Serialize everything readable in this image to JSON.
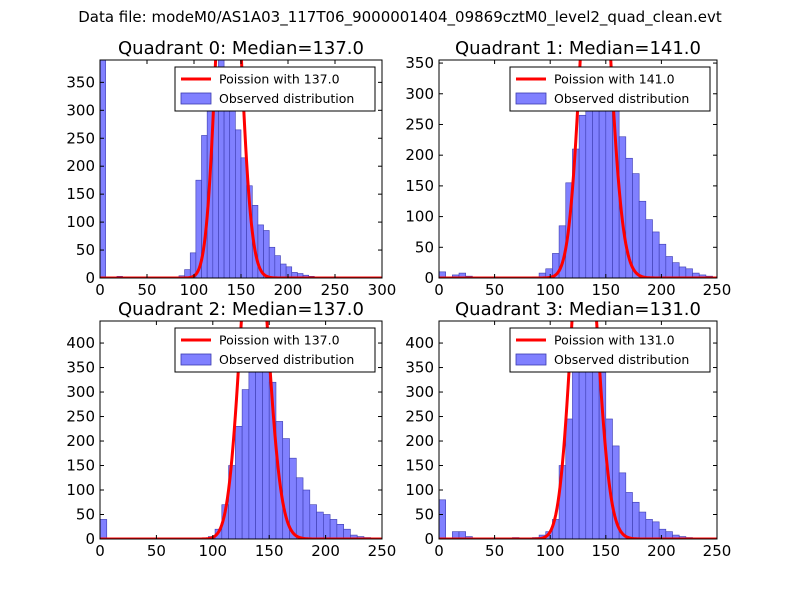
{
  "figure": {
    "title": "Data file: modeM0/AS1A03_117T06_9000001404_09869cztM0_level2_quad_clean.evt"
  },
  "colors": {
    "histogram_fill": "#8080ff",
    "histogram_edge": "#3b3bb0",
    "poisson_line": "#ff0000",
    "axes": "#000000",
    "background": "#ffffff"
  },
  "chart_data": [
    {
      "type": "bar",
      "title": "Quadrant 0: Median=137.0",
      "xlim": [
        0,
        300
      ],
      "ylim": [
        0,
        390
      ],
      "xticks": [
        0,
        50,
        100,
        150,
        200,
        250,
        300
      ],
      "yticks": [
        0,
        50,
        100,
        150,
        200,
        250,
        300,
        350
      ],
      "bin_width": 6,
      "legend": {
        "location": "top-right",
        "entries": [
          "Poission with 137.0",
          "Observed distribution"
        ]
      },
      "series": [
        {
          "name": "Observed distribution",
          "type": "histogram",
          "x": [
            0,
            6,
            12,
            18,
            24,
            30,
            36,
            42,
            48,
            54,
            60,
            66,
            72,
            78,
            84,
            90,
            96,
            102,
            108,
            114,
            120,
            126,
            132,
            138,
            144,
            150,
            156,
            162,
            168,
            174,
            180,
            186,
            192,
            198,
            204,
            210,
            216,
            222,
            228,
            234,
            240,
            246,
            252,
            258
          ],
          "values": [
            390,
            0,
            0,
            3,
            0,
            0,
            0,
            0,
            0,
            0,
            0,
            0,
            0,
            2,
            4,
            15,
            45,
            175,
            255,
            360,
            360,
            395,
            355,
            320,
            265,
            215,
            165,
            130,
            95,
            85,
            55,
            40,
            25,
            20,
            10,
            8,
            5,
            3,
            2,
            2,
            1,
            0,
            0,
            1
          ]
        },
        {
          "name": "Poission with 137.0",
          "type": "line",
          "mu": 137.0
        }
      ]
    },
    {
      "type": "bar",
      "title": "Quadrant 1: Median=141.0",
      "xlim": [
        0,
        250
      ],
      "ylim": [
        0,
        355
      ],
      "xticks": [
        0,
        50,
        100,
        150,
        200,
        250
      ],
      "yticks": [
        0,
        50,
        100,
        150,
        200,
        250,
        300,
        350
      ],
      "bin_width": 6,
      "legend": {
        "location": "top-right",
        "entries": [
          "Poission with 141.0",
          "Observed distribution"
        ]
      },
      "series": [
        {
          "name": "Observed distribution",
          "type": "histogram",
          "x": [
            0,
            6,
            12,
            18,
            24,
            30,
            36,
            42,
            48,
            54,
            60,
            66,
            72,
            78,
            84,
            90,
            96,
            102,
            108,
            114,
            120,
            126,
            132,
            138,
            144,
            150,
            156,
            162,
            168,
            174,
            180,
            186,
            192,
            198,
            204,
            210,
            216,
            222,
            228,
            234,
            240
          ],
          "values": [
            10,
            0,
            5,
            8,
            3,
            0,
            0,
            0,
            0,
            0,
            0,
            0,
            0,
            0,
            2,
            8,
            15,
            40,
            85,
            155,
            210,
            265,
            325,
            330,
            320,
            315,
            285,
            230,
            195,
            170,
            125,
            95,
            75,
            55,
            35,
            25,
            18,
            15,
            8,
            5,
            3
          ]
        },
        {
          "name": "Poission with 141.0",
          "type": "line",
          "mu": 141.0
        }
      ]
    },
    {
      "type": "bar",
      "title": "Quadrant 2: Median=137.0",
      "xlim": [
        0,
        250
      ],
      "ylim": [
        0,
        445
      ],
      "xticks": [
        0,
        50,
        100,
        150,
        200,
        250
      ],
      "yticks": [
        0,
        50,
        100,
        150,
        200,
        250,
        300,
        350,
        400
      ],
      "bin_width": 6,
      "legend": {
        "location": "top-right",
        "entries": [
          "Poission with 137.0",
          "Observed distribution"
        ]
      },
      "series": [
        {
          "name": "Observed distribution",
          "type": "histogram",
          "x": [
            0,
            6,
            12,
            18,
            24,
            30,
            36,
            42,
            48,
            54,
            60,
            66,
            72,
            78,
            84,
            90,
            96,
            102,
            108,
            114,
            120,
            126,
            132,
            138,
            144,
            150,
            156,
            162,
            168,
            174,
            180,
            186,
            192,
            198,
            204,
            210,
            216,
            222,
            228,
            234,
            240
          ],
          "values": [
            40,
            0,
            0,
            0,
            0,
            0,
            0,
            0,
            0,
            0,
            0,
            0,
            0,
            0,
            0,
            0,
            5,
            20,
            70,
            150,
            230,
            305,
            395,
            430,
            395,
            320,
            240,
            205,
            165,
            125,
            100,
            70,
            55,
            50,
            40,
            30,
            20,
            8,
            5,
            3,
            2
          ]
        },
        {
          "name": "Poission with 137.0",
          "type": "line",
          "mu": 137.0
        }
      ]
    },
    {
      "type": "bar",
      "title": "Quadrant 3: Median=131.0",
      "xlim": [
        0,
        250
      ],
      "ylim": [
        0,
        445
      ],
      "xticks": [
        0,
        50,
        100,
        150,
        200,
        250
      ],
      "yticks": [
        0,
        50,
        100,
        150,
        200,
        250,
        300,
        350,
        400
      ],
      "bin_width": 6,
      "legend": {
        "location": "top-right",
        "entries": [
          "Poission with 131.0",
          "Observed distribution"
        ]
      },
      "series": [
        {
          "name": "Observed distribution",
          "type": "histogram",
          "x": [
            0,
            6,
            12,
            18,
            24,
            30,
            36,
            42,
            48,
            54,
            60,
            66,
            72,
            78,
            84,
            90,
            96,
            102,
            108,
            114,
            120,
            126,
            132,
            138,
            144,
            150,
            156,
            162,
            168,
            174,
            180,
            186,
            192,
            198,
            204,
            210,
            216,
            222,
            228,
            234
          ],
          "values": [
            80,
            0,
            15,
            15,
            5,
            0,
            0,
            0,
            0,
            0,
            0,
            3,
            0,
            0,
            3,
            8,
            15,
            40,
            150,
            245,
            355,
            380,
            425,
            390,
            340,
            245,
            190,
            135,
            95,
            75,
            55,
            40,
            35,
            20,
            15,
            8,
            5,
            3,
            2,
            1
          ]
        },
        {
          "name": "Poission with 131.0",
          "type": "line",
          "mu": 131.0
        }
      ]
    }
  ]
}
